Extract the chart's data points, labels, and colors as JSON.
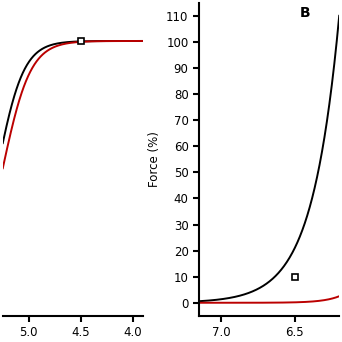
{
  "panel_A": {
    "xlim": [
      5.25,
      3.9
    ],
    "ylim": [
      -8,
      115
    ],
    "xticks": [
      5.0,
      4.5,
      4.0
    ],
    "marker_x": 4.5,
    "marker_y": 100
  },
  "panel_B": {
    "label": "B",
    "xlim": [
      7.15,
      6.2
    ],
    "ylim": [
      -5,
      115
    ],
    "xticks": [
      7.0,
      6.5
    ],
    "yticks": [
      0,
      10,
      20,
      30,
      40,
      50,
      60,
      70,
      80,
      90,
      100,
      110
    ],
    "ylabel": "Force (%)",
    "marker_x": 6.5,
    "marker_y": 10
  },
  "bg_color": "#ffffff",
  "black_color": "#000000",
  "red_color": "#bb0000",
  "line_width": 1.4,
  "marker_size": 4.5,
  "font_size": 8.5,
  "label_font_size": 10
}
